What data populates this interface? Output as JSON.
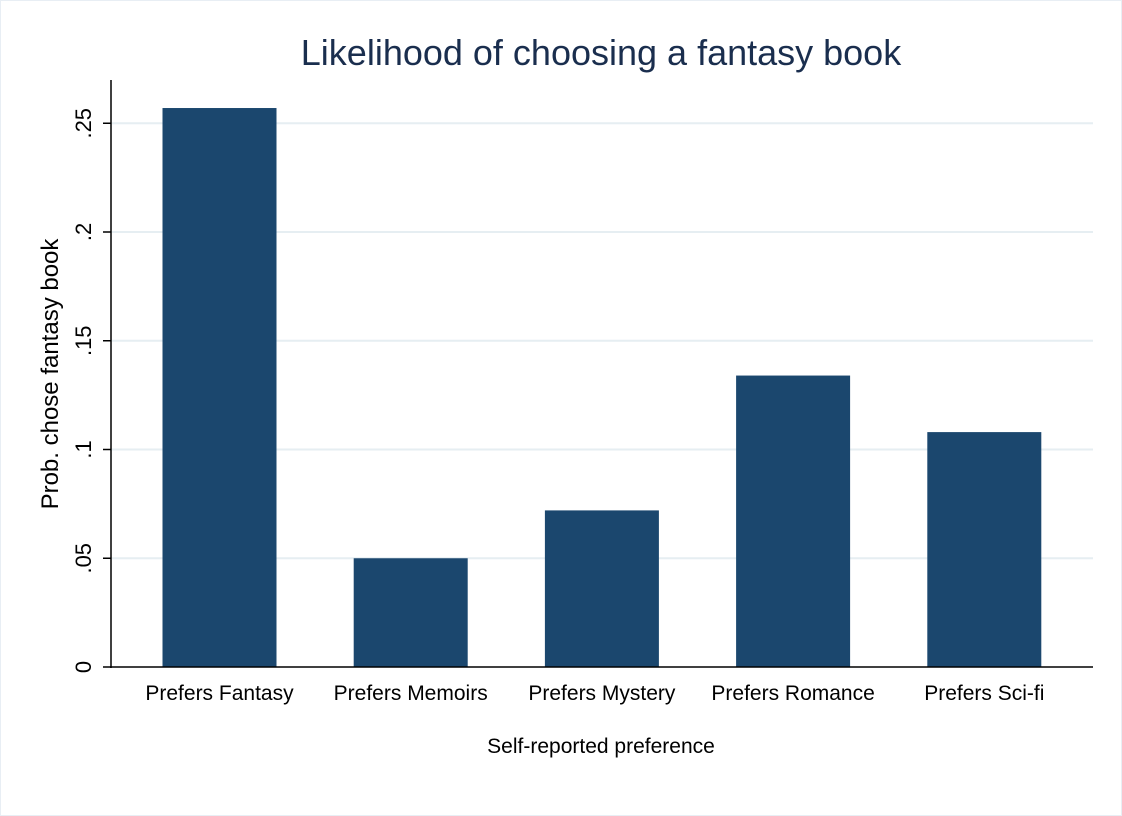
{
  "chart_data": {
    "type": "bar",
    "title": "Likelihood of choosing a fantasy book",
    "xlabel": "Self-reported preference",
    "ylabel": "Prob. chose fantasy book",
    "categories": [
      "Prefers Fantasy",
      "Prefers Memoirs",
      "Prefers Mystery",
      "Prefers Romance",
      "Prefers Sci-fi"
    ],
    "values": [
      0.257,
      0.05,
      0.072,
      0.134,
      0.108
    ],
    "ylim": [
      0,
      0.27
    ],
    "yticks": [
      0,
      0.05,
      0.1,
      0.15,
      0.2,
      0.25
    ],
    "ytick_labels": [
      "0",
      ".05",
      ".1",
      ".15",
      ".2",
      ".25"
    ],
    "grid": true,
    "bar_color": "#1b476e",
    "title_color": "#1a2e4e"
  }
}
